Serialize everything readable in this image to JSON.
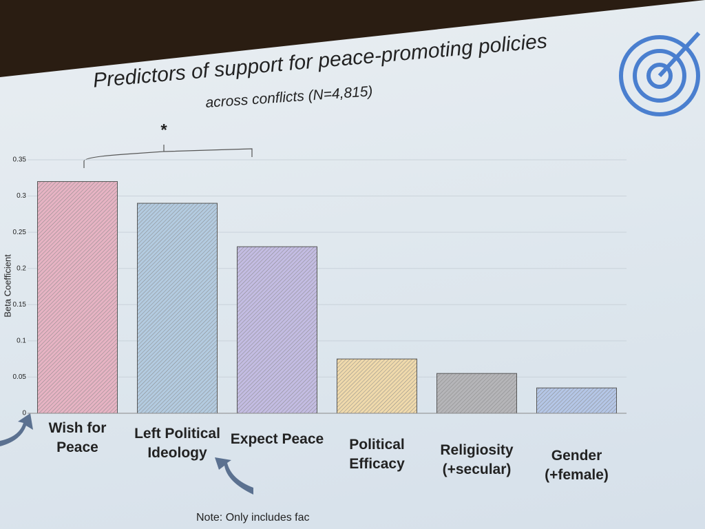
{
  "chart_data": {
    "type": "bar",
    "title": "Predictors of support for peace-promoting policies",
    "subtitle": "across conflicts (N=4,815)",
    "y_label": "Beta Coefficient",
    "categories": [
      "Wish for Peace",
      "Left Political Ideology",
      "Expect Peace",
      "Political Efficacy",
      "Religiosity (+secular)",
      "Gender (+female)"
    ],
    "values": [
      0.32,
      0.29,
      0.23,
      0.075,
      0.055,
      0.035
    ],
    "colors": [
      "#e6b3c3",
      "#b3cbe0",
      "#c3bce2",
      "#efd9ab",
      "#b5b5b8",
      "#b4c6e6"
    ],
    "ylim": [
      0,
      0.35
    ],
    "yticks": [
      0,
      0.05,
      0.1,
      0.15,
      0.2,
      0.25,
      0.3,
      0.35
    ],
    "grid": true,
    "annotation": "*",
    "note": "Note: Only includes fac"
  }
}
